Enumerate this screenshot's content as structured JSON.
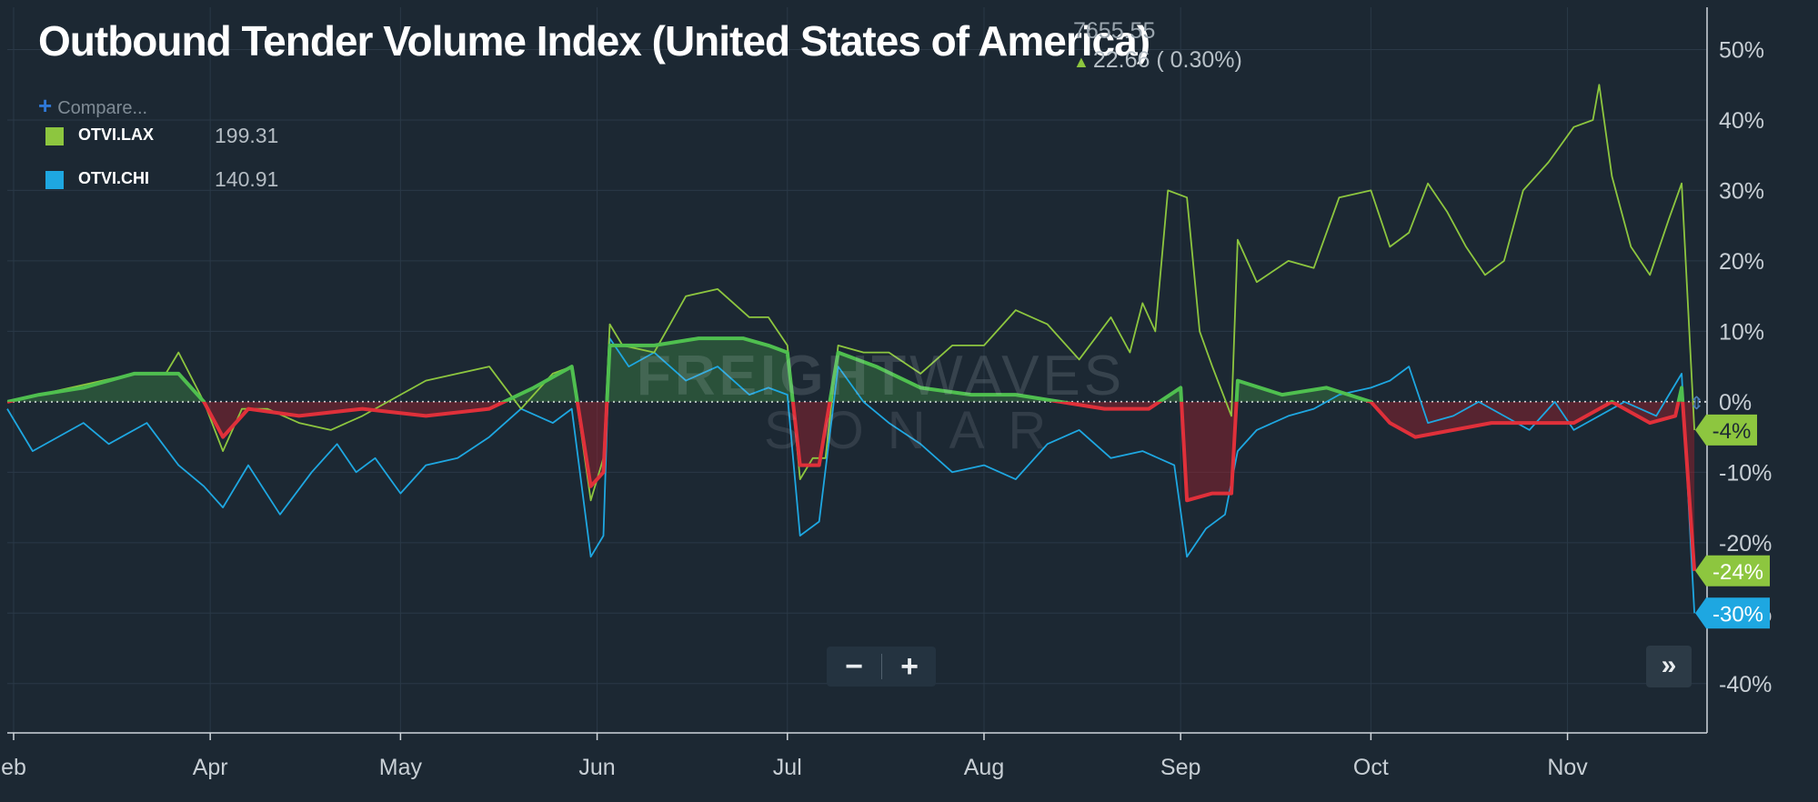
{
  "header": {
    "title": "Outbound Tender Volume Index (United States of America)",
    "value": "7655.55",
    "change": "22.66 ( 0.30%)"
  },
  "compare_label": "Compare...",
  "legend": [
    {
      "name": "OTVI.LAX",
      "value": "199.31",
      "color": "#8dc63f"
    },
    {
      "name": "OTVI.CHI",
      "value": "140.91",
      "color": "#1ea7e1"
    }
  ],
  "watermark": {
    "brand_bold": "FREIGHT",
    "brand_light": "WAVES",
    "product": "SONAR"
  },
  "controls": {
    "zoom_out": "−",
    "zoom_in": "+",
    "next": "»"
  },
  "colors": {
    "background": "#1c2833",
    "lax": "#8dc63f",
    "chi": "#1ea7e1",
    "spread_positive": "#4fbf4f",
    "spread_negative": "#e0303a"
  },
  "chart_data": {
    "type": "line",
    "title": "Outbound Tender Volume Index (United States of America)",
    "x_range": [
      "2019-02-28",
      "2019-11-23"
    ],
    "x_ticks": [
      {
        "date": "2019-03-01",
        "label": "eb"
      },
      {
        "date": "2019-04-01",
        "label": "Apr"
      },
      {
        "date": "2019-05-01",
        "label": "May"
      },
      {
        "date": "2019-06-01",
        "label": "Jun"
      },
      {
        "date": "2019-07-01",
        "label": "Jul"
      },
      {
        "date": "2019-08-01",
        "label": "Aug"
      },
      {
        "date": "2019-09-01",
        "label": "Sep"
      },
      {
        "date": "2019-10-01",
        "label": "Oct"
      },
      {
        "date": "2019-11-01",
        "label": "Nov"
      }
    ],
    "y_axis": {
      "range": [
        -47,
        56
      ],
      "unit": "%",
      "ticks": [
        {
          "value": 50,
          "label": "50%"
        },
        {
          "value": 40,
          "label": "40%"
        },
        {
          "value": 30,
          "label": "30%"
        },
        {
          "value": 20,
          "label": "20%"
        },
        {
          "value": 10,
          "label": "10%"
        },
        {
          "value": 0,
          "label": "0%"
        },
        {
          "value": -10,
          "label": "-10%"
        },
        {
          "value": -20,
          "label": "-20%"
        },
        {
          "value": -30,
          "label": "-30%"
        },
        {
          "value": -40,
          "label": "-40%"
        }
      ]
    },
    "grid": true,
    "legend_position": "top-left",
    "end_labels": [
      {
        "series": "OTVI.LAX",
        "value": -4,
        "label": "-4%"
      },
      {
        "series": "spread",
        "value": -24,
        "label": "-24%"
      },
      {
        "series": "OTVI.CHI",
        "value": -30,
        "label": "-30%"
      }
    ],
    "series": [
      {
        "name": "OTVI.LAX",
        "points": [
          [
            "2019-02-28",
            0
          ],
          [
            "2019-03-05",
            1
          ],
          [
            "2019-03-10",
            2
          ],
          [
            "2019-03-15",
            3
          ],
          [
            "2019-03-20",
            4
          ],
          [
            "2019-03-25",
            4
          ],
          [
            "2019-03-27",
            7
          ],
          [
            "2019-03-31",
            0
          ],
          [
            "2019-04-03",
            -7
          ],
          [
            "2019-04-06",
            -1
          ],
          [
            "2019-04-10",
            -1
          ],
          [
            "2019-04-15",
            -3
          ],
          [
            "2019-04-20",
            -4
          ],
          [
            "2019-04-25",
            -2
          ],
          [
            "2019-05-01",
            1
          ],
          [
            "2019-05-05",
            3
          ],
          [
            "2019-05-10",
            4
          ],
          [
            "2019-05-15",
            5
          ],
          [
            "2019-05-20",
            -1
          ],
          [
            "2019-05-25",
            4
          ],
          [
            "2019-05-28",
            5
          ],
          [
            "2019-05-31",
            -14
          ],
          [
            "2019-06-02",
            -8
          ],
          [
            "2019-06-03",
            11
          ],
          [
            "2019-06-05",
            8
          ],
          [
            "2019-06-10",
            7
          ],
          [
            "2019-06-15",
            15
          ],
          [
            "2019-06-20",
            16
          ],
          [
            "2019-06-25",
            12
          ],
          [
            "2019-06-28",
            12
          ],
          [
            "2019-07-01",
            8
          ],
          [
            "2019-07-03",
            -11
          ],
          [
            "2019-07-05",
            -8
          ],
          [
            "2019-07-07",
            -8
          ],
          [
            "2019-07-09",
            8
          ],
          [
            "2019-07-13",
            7
          ],
          [
            "2019-07-17",
            7
          ],
          [
            "2019-07-22",
            4
          ],
          [
            "2019-07-27",
            8
          ],
          [
            "2019-08-01",
            8
          ],
          [
            "2019-08-06",
            13
          ],
          [
            "2019-08-11",
            11
          ],
          [
            "2019-08-16",
            6
          ],
          [
            "2019-08-21",
            12
          ],
          [
            "2019-08-24",
            7
          ],
          [
            "2019-08-26",
            14
          ],
          [
            "2019-08-28",
            10
          ],
          [
            "2019-08-30",
            30
          ],
          [
            "2019-09-02",
            29
          ],
          [
            "2019-09-04",
            10
          ],
          [
            "2019-09-06",
            5
          ],
          [
            "2019-09-09",
            -2
          ],
          [
            "2019-09-10",
            23
          ],
          [
            "2019-09-13",
            17
          ],
          [
            "2019-09-18",
            20
          ],
          [
            "2019-09-22",
            19
          ],
          [
            "2019-09-26",
            29
          ],
          [
            "2019-10-01",
            30
          ],
          [
            "2019-10-04",
            22
          ],
          [
            "2019-10-07",
            24
          ],
          [
            "2019-10-10",
            31
          ],
          [
            "2019-10-13",
            27
          ],
          [
            "2019-10-16",
            22
          ],
          [
            "2019-10-19",
            18
          ],
          [
            "2019-10-22",
            20
          ],
          [
            "2019-10-25",
            30
          ],
          [
            "2019-10-29",
            34
          ],
          [
            "2019-11-02",
            39
          ],
          [
            "2019-11-05",
            40
          ],
          [
            "2019-11-06",
            45
          ],
          [
            "2019-11-08",
            32
          ],
          [
            "2019-11-11",
            22
          ],
          [
            "2019-11-14",
            18
          ],
          [
            "2019-11-17",
            26
          ],
          [
            "2019-11-19",
            31
          ],
          [
            "2019-11-21",
            -4
          ]
        ]
      },
      {
        "name": "OTVI.CHI",
        "points": [
          [
            "2019-02-28",
            -1
          ],
          [
            "2019-03-04",
            -7
          ],
          [
            "2019-03-08",
            -5
          ],
          [
            "2019-03-12",
            -3
          ],
          [
            "2019-03-16",
            -6
          ],
          [
            "2019-03-22",
            -3
          ],
          [
            "2019-03-27",
            -9
          ],
          [
            "2019-03-31",
            -12
          ],
          [
            "2019-04-03",
            -15
          ],
          [
            "2019-04-07",
            -9
          ],
          [
            "2019-04-12",
            -16
          ],
          [
            "2019-04-17",
            -10
          ],
          [
            "2019-04-21",
            -6
          ],
          [
            "2019-04-24",
            -10
          ],
          [
            "2019-04-27",
            -8
          ],
          [
            "2019-05-01",
            -13
          ],
          [
            "2019-05-05",
            -9
          ],
          [
            "2019-05-10",
            -8
          ],
          [
            "2019-05-15",
            -5
          ],
          [
            "2019-05-20",
            -1
          ],
          [
            "2019-05-25",
            -3
          ],
          [
            "2019-05-28",
            -1
          ],
          [
            "2019-05-31",
            -22
          ],
          [
            "2019-06-02",
            -19
          ],
          [
            "2019-06-03",
            9
          ],
          [
            "2019-06-06",
            5
          ],
          [
            "2019-06-10",
            7
          ],
          [
            "2019-06-15",
            3
          ],
          [
            "2019-06-20",
            5
          ],
          [
            "2019-06-25",
            1
          ],
          [
            "2019-06-28",
            2
          ],
          [
            "2019-07-01",
            1
          ],
          [
            "2019-07-03",
            -19
          ],
          [
            "2019-07-06",
            -17
          ],
          [
            "2019-07-09",
            5
          ],
          [
            "2019-07-13",
            0
          ],
          [
            "2019-07-17",
            -3
          ],
          [
            "2019-07-22",
            -6
          ],
          [
            "2019-07-27",
            -10
          ],
          [
            "2019-08-01",
            -9
          ],
          [
            "2019-08-06",
            -11
          ],
          [
            "2019-08-11",
            -6
          ],
          [
            "2019-08-16",
            -4
          ],
          [
            "2019-08-21",
            -8
          ],
          [
            "2019-08-26",
            -7
          ],
          [
            "2019-08-31",
            -9
          ],
          [
            "2019-09-02",
            -22
          ],
          [
            "2019-09-05",
            -18
          ],
          [
            "2019-09-08",
            -16
          ],
          [
            "2019-09-10",
            -7
          ],
          [
            "2019-09-13",
            -4
          ],
          [
            "2019-09-18",
            -2
          ],
          [
            "2019-09-22",
            -1
          ],
          [
            "2019-09-26",
            1
          ],
          [
            "2019-10-01",
            2
          ],
          [
            "2019-10-04",
            3
          ],
          [
            "2019-10-07",
            5
          ],
          [
            "2019-10-10",
            -3
          ],
          [
            "2019-10-14",
            -2
          ],
          [
            "2019-10-18",
            0
          ],
          [
            "2019-10-22",
            -2
          ],
          [
            "2019-10-26",
            -4
          ],
          [
            "2019-10-30",
            0
          ],
          [
            "2019-11-02",
            -4
          ],
          [
            "2019-11-06",
            -2
          ],
          [
            "2019-11-10",
            0
          ],
          [
            "2019-11-15",
            -2
          ],
          [
            "2019-11-19",
            4
          ],
          [
            "2019-11-21",
            -30
          ]
        ]
      },
      {
        "name": "spread",
        "points": [
          [
            "2019-02-28",
            0
          ],
          [
            "2019-03-05",
            1
          ],
          [
            "2019-03-12",
            2
          ],
          [
            "2019-03-20",
            4
          ],
          [
            "2019-03-27",
            4
          ],
          [
            "2019-03-31",
            0
          ],
          [
            "2019-04-03",
            -5
          ],
          [
            "2019-04-07",
            -1
          ],
          [
            "2019-04-15",
            -2
          ],
          [
            "2019-04-25",
            -1
          ],
          [
            "2019-05-05",
            -2
          ],
          [
            "2019-05-15",
            -1
          ],
          [
            "2019-05-22",
            2
          ],
          [
            "2019-05-28",
            5
          ],
          [
            "2019-05-31",
            -12
          ],
          [
            "2019-06-02",
            -10
          ],
          [
            "2019-06-03",
            8
          ],
          [
            "2019-06-10",
            8
          ],
          [
            "2019-06-17",
            9
          ],
          [
            "2019-06-24",
            9
          ],
          [
            "2019-06-28",
            8
          ],
          [
            "2019-07-01",
            7
          ],
          [
            "2019-07-03",
            -9
          ],
          [
            "2019-07-06",
            -9
          ],
          [
            "2019-07-09",
            7
          ],
          [
            "2019-07-15",
            5
          ],
          [
            "2019-07-22",
            2
          ],
          [
            "2019-07-30",
            1
          ],
          [
            "2019-08-06",
            1
          ],
          [
            "2019-08-13",
            0
          ],
          [
            "2019-08-20",
            -1
          ],
          [
            "2019-08-27",
            -1
          ],
          [
            "2019-09-01",
            2
          ],
          [
            "2019-09-02",
            -14
          ],
          [
            "2019-09-06",
            -13
          ],
          [
            "2019-09-09",
            -13
          ],
          [
            "2019-09-10",
            3
          ],
          [
            "2019-09-17",
            1
          ],
          [
            "2019-09-24",
            2
          ],
          [
            "2019-10-01",
            0
          ],
          [
            "2019-10-04",
            -3
          ],
          [
            "2019-10-08",
            -5
          ],
          [
            "2019-10-14",
            -4
          ],
          [
            "2019-10-20",
            -3
          ],
          [
            "2019-10-27",
            -3
          ],
          [
            "2019-11-02",
            -3
          ],
          [
            "2019-11-08",
            0
          ],
          [
            "2019-11-14",
            -3
          ],
          [
            "2019-11-18",
            -2
          ],
          [
            "2019-11-19",
            2
          ],
          [
            "2019-11-21",
            -24
          ]
        ]
      }
    ]
  }
}
